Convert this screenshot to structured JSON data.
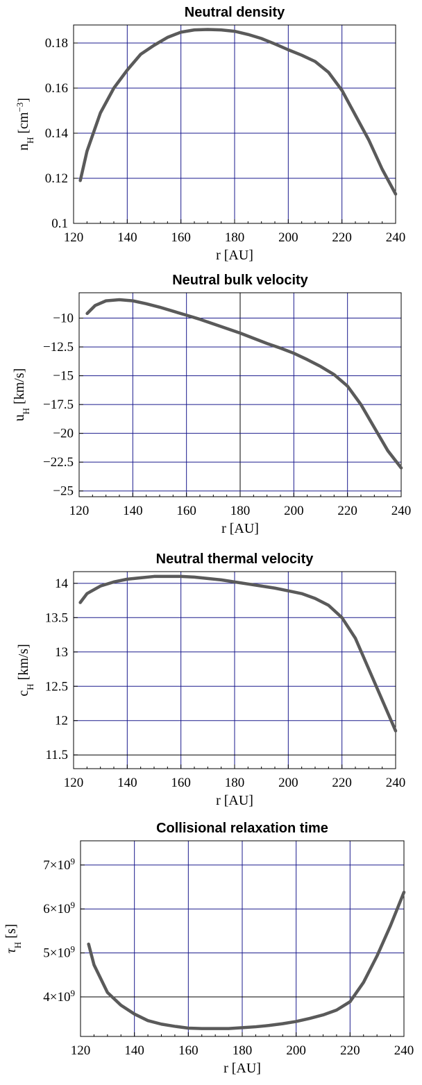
{
  "chart_data": [
    {
      "type": "line",
      "title": "Neutral density",
      "xlabel": "r [AU]",
      "ylabel": "n_H [cm^-3]",
      "ylabel_parts": {
        "sym": "n",
        "sub": "H",
        "unit_pre": " [cm",
        "sup": "−3",
        "unit_post": "]"
      },
      "xlim": [
        120,
        240
      ],
      "ylim": [
        0.1,
        0.188
      ],
      "x_ticks": [
        120,
        140,
        160,
        180,
        200,
        220,
        240
      ],
      "y_ticks": [
        0.1,
        0.12,
        0.14,
        0.16,
        0.18
      ],
      "y_tick_labels": [
        "0.1",
        "0.12",
        "0.14",
        "0.16",
        "0.18"
      ],
      "grid_x": [
        140,
        160,
        180,
        200,
        220
      ],
      "grid_y": [
        0.12,
        0.14,
        0.16,
        0.18
      ],
      "grid": true,
      "series": [
        {
          "x": [
            122.5,
            125,
            130,
            135,
            140,
            145,
            150,
            155,
            160,
            165,
            170,
            175,
            180,
            185,
            190,
            195,
            200,
            205,
            210,
            215,
            220,
            225,
            230,
            235,
            240
          ],
          "y": [
            0.119,
            0.132,
            0.149,
            0.16,
            0.168,
            0.175,
            0.179,
            0.1825,
            0.1848,
            0.1858,
            0.186,
            0.1858,
            0.1852,
            0.1838,
            0.182,
            0.1796,
            0.177,
            0.1746,
            0.1718,
            0.167,
            0.159,
            0.148,
            0.137,
            0.124,
            0.113
          ]
        }
      ]
    },
    {
      "type": "line",
      "title": "Neutral bulk velocity",
      "xlabel": "r [AU]",
      "ylabel": "u_H [km/s]",
      "ylabel_parts": {
        "sym": "u",
        "sub": "H",
        "unit_pre": " [km/s]",
        "sup": "",
        "unit_post": ""
      },
      "xlim": [
        120,
        240
      ],
      "ylim": [
        -25.5,
        -7.8
      ],
      "x_ticks": [
        120,
        140,
        160,
        180,
        200,
        220,
        240
      ],
      "y_ticks": [
        -10,
        -12.5,
        -15,
        -17.5,
        -20,
        -22.5,
        -25
      ],
      "y_tick_labels": [
        "−10",
        "−12.5",
        "−15",
        "−17.5",
        "−20",
        "−22.5",
        "−25"
      ],
      "grid_x": [
        140,
        160,
        180,
        200,
        220
      ],
      "grid_y": [
        -10,
        -12.5,
        -15,
        -17.5,
        -20,
        -22.5,
        -25
      ],
      "grid": true,
      "series": [
        {
          "x": [
            123,
            126,
            130,
            135,
            140,
            145,
            150,
            155,
            160,
            165,
            170,
            175,
            180,
            185,
            190,
            195,
            200,
            205,
            210,
            215,
            220,
            225,
            230,
            235,
            240
          ],
          "y": [
            -9.6,
            -8.9,
            -8.5,
            -8.4,
            -8.5,
            -8.75,
            -9.05,
            -9.4,
            -9.75,
            -10.1,
            -10.5,
            -10.9,
            -11.3,
            -11.75,
            -12.2,
            -12.6,
            -13.05,
            -13.6,
            -14.2,
            -14.9,
            -15.9,
            -17.5,
            -19.5,
            -21.5,
            -23.0
          ]
        }
      ]
    },
    {
      "type": "line",
      "title": "Neutral thermal velocity",
      "xlabel": "r [AU]",
      "ylabel": "c_H [km/s]",
      "ylabel_parts": {
        "sym": "c",
        "sub": "H",
        "unit_pre": " [km/s]",
        "sup": "",
        "unit_post": ""
      },
      "xlim": [
        120,
        240
      ],
      "ylim": [
        11.3,
        14.17
      ],
      "x_ticks": [
        120,
        140,
        160,
        180,
        200,
        220,
        240
      ],
      "y_ticks": [
        11.5,
        12,
        12.5,
        13,
        13.5,
        14
      ],
      "y_tick_labels": [
        "11.5",
        "12",
        "12.5",
        "13",
        "13.5",
        "14"
      ],
      "grid_x": [
        140,
        160,
        180,
        200,
        220
      ],
      "grid_y": [
        11.5,
        12,
        12.5,
        13,
        13.5,
        14
      ],
      "grid": true,
      "series": [
        {
          "x": [
            122.5,
            125,
            130,
            135,
            140,
            145,
            150,
            155,
            160,
            165,
            170,
            175,
            180,
            185,
            190,
            195,
            200,
            205,
            210,
            215,
            220,
            225,
            230,
            235,
            240
          ],
          "y": [
            13.72,
            13.85,
            13.96,
            14.02,
            14.06,
            14.08,
            14.1,
            14.1,
            14.1,
            14.09,
            14.07,
            14.05,
            14.02,
            13.99,
            13.96,
            13.93,
            13.89,
            13.85,
            13.78,
            13.68,
            13.5,
            13.2,
            12.75,
            12.3,
            11.85
          ]
        }
      ]
    },
    {
      "type": "line",
      "title": "Collisional relaxation time",
      "xlabel": "r [AU]",
      "ylabel": "τ_H [s]",
      "ylabel_parts": {
        "sym": "τ",
        "sub": "H",
        "unit_pre": " [s]",
        "sup": "",
        "unit_post": ""
      },
      "xlim": [
        120,
        240
      ],
      "ylim": [
        3100000000.0,
        7550000000.0
      ],
      "x_ticks": [
        120,
        140,
        160,
        180,
        200,
        220,
        240
      ],
      "y_ticks": [
        4000000000.0,
        5000000000.0,
        6000000000.0,
        7000000000.0
      ],
      "y_tick_labels": [
        "4×10^9",
        "5×10^9",
        "6×10^9",
        "7×10^9"
      ],
      "y_tick_parts": [
        {
          "mant": "4",
          "exp": "9"
        },
        {
          "mant": "5",
          "exp": "9"
        },
        {
          "mant": "6",
          "exp": "9"
        },
        {
          "mant": "7",
          "exp": "9"
        }
      ],
      "grid_x": [
        140,
        160,
        180,
        200,
        220
      ],
      "grid_y": [
        4000000000.0,
        5000000000.0,
        6000000000.0,
        7000000000.0
      ],
      "grid": true,
      "series": [
        {
          "x": [
            123,
            125,
            130,
            135,
            140,
            145,
            150,
            155,
            160,
            165,
            170,
            175,
            180,
            185,
            190,
            195,
            200,
            205,
            210,
            215,
            220,
            225,
            230,
            235,
            240
          ],
          "y": [
            5200000000.0,
            4730000000.0,
            4100000000.0,
            3810000000.0,
            3610000000.0,
            3460000000.0,
            3380000000.0,
            3330000000.0,
            3290000000.0,
            3280000000.0,
            3280000000.0,
            3280000000.0,
            3300000000.0,
            3320000000.0,
            3350000000.0,
            3390000000.0,
            3440000000.0,
            3510000000.0,
            3590000000.0,
            3700000000.0,
            3890000000.0,
            4330000000.0,
            4930000000.0,
            5620000000.0,
            6380000000.0
          ]
        }
      ]
    }
  ],
  "colors": {
    "grid": "#1a1a8c",
    "grid_special": "#000000",
    "curve": "#5a5a5a",
    "frame": "#000000",
    "background": "#ffffff"
  }
}
